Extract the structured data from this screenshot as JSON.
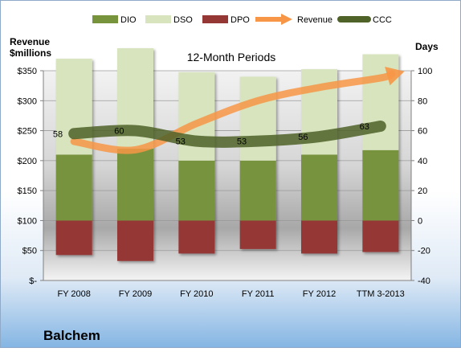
{
  "chart_data": {
    "type": "bar",
    "title": "12-Month Periods",
    "company": "Balchem",
    "categories": [
      "FY 2008",
      "FY 2009",
      "FY 2010",
      "FY 2011",
      "FY 2012",
      "TTM 3-2013"
    ],
    "left_axis": {
      "title_line1": "Revenue",
      "title_line2": "$millions",
      "ylim": [
        0,
        350
      ],
      "ticks": [
        0,
        50,
        100,
        150,
        200,
        250,
        300,
        350
      ],
      "tick_labels": [
        "$-",
        "$50",
        "$100",
        "$150",
        "$200",
        "$250",
        "$300",
        "$350"
      ]
    },
    "right_axis": {
      "title": "Days",
      "ylim": [
        -40,
        100
      ],
      "ticks": [
        -40,
        -20,
        0,
        20,
        40,
        60,
        80,
        100
      ],
      "tick_labels": [
        "-40",
        "-20",
        "0",
        "20",
        "40",
        "60",
        "80",
        "100"
      ]
    },
    "series": [
      {
        "name": "DIO",
        "type": "stacked-bar",
        "axis": "right",
        "color": "#77933C",
        "values": [
          44,
          48,
          40,
          40,
          44,
          47
        ]
      },
      {
        "name": "DSO",
        "type": "stacked-bar",
        "axis": "right",
        "color": "#D7E4BD",
        "values": [
          64,
          67,
          59,
          56,
          57,
          64
        ]
      },
      {
        "name": "DPO",
        "type": "negative-bar",
        "axis": "right",
        "color": "#953735",
        "values": [
          -23,
          -27,
          -22,
          -19,
          -22,
          -21
        ]
      },
      {
        "name": "Revenue",
        "type": "arrow-line",
        "axis": "left",
        "color": "#F79646",
        "values": [
          232,
          218,
          262,
          300,
          322,
          338
        ]
      },
      {
        "name": "CCC",
        "type": "thick-line",
        "axis": "right",
        "color": "#4F6228",
        "values": [
          58,
          60,
          53,
          53,
          56,
          63
        ],
        "labels": [
          "58",
          "60",
          "53",
          "53",
          "56",
          "63"
        ]
      }
    ],
    "legend": [
      "DIO",
      "DSO",
      "DPO",
      "Revenue",
      "CCC"
    ],
    "legend_position": "top",
    "grid": true
  }
}
